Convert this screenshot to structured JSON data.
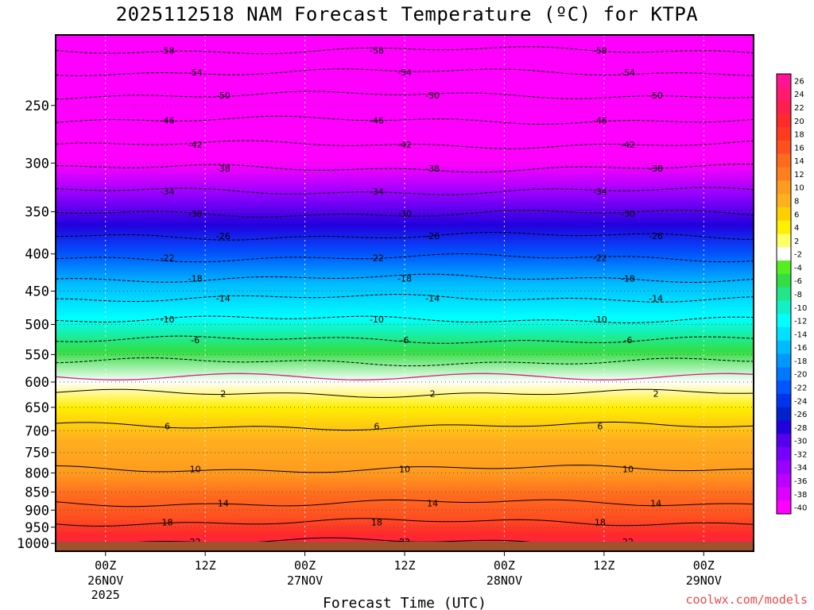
{
  "chart_data": {
    "type": "heatmap",
    "title": "2025112518 NAM Forecast Temperature (ºC) for KTPA",
    "xlabel": "Forecast Time (UTC)",
    "ylabel": "",
    "x_ticks": [
      {
        "hour": 6,
        "label": "00Z",
        "sub1": "26NOV",
        "sub2": "2025"
      },
      {
        "hour": 18,
        "label": "12Z",
        "sub1": "",
        "sub2": ""
      },
      {
        "hour": 30,
        "label": "00Z",
        "sub1": "27NOV",
        "sub2": ""
      },
      {
        "hour": 42,
        "label": "12Z",
        "sub1": "",
        "sub2": ""
      },
      {
        "hour": 54,
        "label": "00Z",
        "sub1": "28NOV",
        "sub2": ""
      },
      {
        "hour": 66,
        "label": "12Z",
        "sub1": "",
        "sub2": ""
      },
      {
        "hour": 78,
        "label": "00Z",
        "sub1": "29NOV",
        "sub2": ""
      }
    ],
    "xlim_hours": [
      0,
      84
    ],
    "y_ticks": [
      250,
      300,
      350,
      400,
      450,
      500,
      550,
      600,
      650,
      700,
      750,
      800,
      850,
      900,
      950,
      1000
    ],
    "ylim_hpa": [
      200,
      1025
    ],
    "y_scale": "log-pressure",
    "colorbar_labels": [
      26,
      24,
      22,
      20,
      18,
      16,
      14,
      12,
      10,
      8,
      6,
      4,
      2,
      -2,
      -4,
      -6,
      -8,
      -10,
      -12,
      -14,
      -16,
      -18,
      -20,
      -22,
      -24,
      -26,
      -28,
      -30,
      -32,
      -34,
      -36,
      -38,
      -40
    ],
    "colorbar_colors": [
      "#ff1493",
      "#ff1a6e",
      "#ff1e50",
      "#ff2a2a",
      "#ff3b1e",
      "#ff5020",
      "#ff6a1e",
      "#ff7f1e",
      "#ff9b1e",
      "#ffb01e",
      "#ffcf00",
      "#ffef00",
      "#ffff66",
      "#ffffff",
      "#55ee22",
      "#33dd44",
      "#22e68a",
      "#11f0c8",
      "#00ffff",
      "#00e0ff",
      "#00bbff",
      "#0099ff",
      "#0077ff",
      "#0055ff",
      "#0033ee",
      "#0022cc",
      "#2200dd",
      "#5500ee",
      "#7700ff",
      "#9900ff",
      "#bb00ff",
      "#dd00ff",
      "#ff00ff"
    ],
    "band_levels": [
      {
        "p": 200,
        "t": -58
      },
      {
        "p": 250,
        "t": -50
      },
      {
        "p": 300,
        "t": -40
      },
      {
        "p": 330,
        "t": -34
      },
      {
        "p": 365,
        "t": -28
      },
      {
        "p": 400,
        "t": -22
      },
      {
        "p": 440,
        "t": -16
      },
      {
        "p": 490,
        "t": -11
      },
      {
        "p": 545,
        "t": -5
      },
      {
        "p": 600,
        "t": 0
      },
      {
        "p": 650,
        "t": 4
      },
      {
        "p": 720,
        "t": 8
      },
      {
        "p": 800,
        "t": 11
      },
      {
        "p": 860,
        "t": 14
      },
      {
        "p": 920,
        "t": 17
      },
      {
        "p": 970,
        "t": 20
      },
      {
        "p": 1010,
        "t": 23
      }
    ],
    "contours": [
      {
        "t": -58,
        "p": 210
      },
      {
        "t": -54,
        "p": 225
      },
      {
        "t": -50,
        "p": 242
      },
      {
        "t": -46,
        "p": 262
      },
      {
        "t": -42,
        "p": 283
      },
      {
        "t": -38,
        "p": 305
      },
      {
        "t": -34,
        "p": 328
      },
      {
        "t": -30,
        "p": 352
      },
      {
        "t": -26,
        "p": 378
      },
      {
        "t": -22,
        "p": 405
      },
      {
        "t": -18,
        "p": 432
      },
      {
        "t": -14,
        "p": 460
      },
      {
        "t": -10,
        "p": 492
      },
      {
        "t": -6,
        "p": 525
      },
      {
        "t": -2,
        "p": 563
      },
      {
        "t": 2,
        "p": 622
      },
      {
        "t": 6,
        "p": 690
      },
      {
        "t": 10,
        "p": 790
      },
      {
        "t": 14,
        "p": 880
      },
      {
        "t": 18,
        "p": 935
      },
      {
        "t": 22,
        "p": 995
      }
    ],
    "contour_labels": [
      "-58",
      "-54",
      "-50",
      "-46",
      "-42",
      "-38",
      "-34",
      "-30",
      "-26",
      "-22",
      "-18",
      "-14",
      "-10",
      "-6",
      "2",
      "6",
      "10",
      "14",
      "18",
      "22"
    ]
  },
  "watermark": "coolwx.com/models"
}
